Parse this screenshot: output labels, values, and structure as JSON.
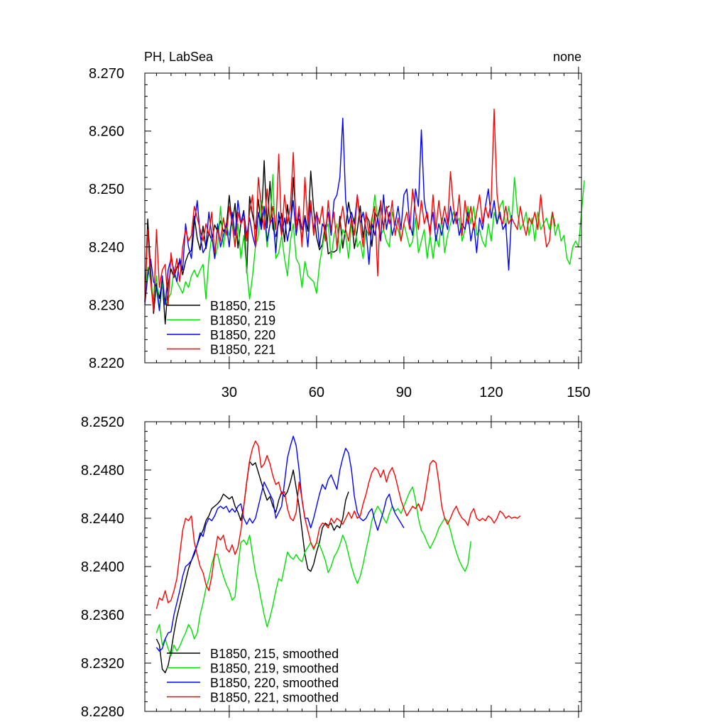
{
  "chart_data": [
    {
      "type": "line",
      "title": "PH, LabSea",
      "subtitle": "none",
      "xlabel": "",
      "ylabel": "",
      "xlim": [
        1,
        151
      ],
      "ylim": [
        8.22,
        8.27
      ],
      "x_ticks": [
        30,
        60,
        90,
        120,
        150
      ],
      "y_ticks": [
        8.22,
        8.23,
        8.24,
        8.25,
        8.26,
        8.27
      ],
      "y_tick_labels": [
        "8.220",
        "8.230",
        "8.240",
        "8.250",
        "8.260",
        "8.270"
      ],
      "grid": false,
      "legend": "bottom-left",
      "series": [
        {
          "name": "B1850, 215",
          "color": "#000000",
          "x_start": 1,
          "values": [
            8.2305,
            8.2448,
            8.2359,
            8.2285,
            8.2337,
            8.2311,
            8.2342,
            8.2267,
            8.2336,
            8.2362,
            8.2347,
            8.2365,
            8.2376,
            8.2352,
            8.2375,
            8.2389,
            8.2394,
            8.2453,
            8.2415,
            8.2395,
            8.2436,
            8.2397,
            8.2425,
            8.2411,
            8.2438,
            8.2427,
            8.2445,
            8.2427,
            8.2434,
            8.2489,
            8.2437,
            8.2475,
            8.2398,
            8.2441,
            8.2463,
            8.2355,
            8.2487,
            8.2454,
            8.2431,
            8.2482,
            8.2436,
            8.2549,
            8.2433,
            8.2513,
            8.2432,
            8.2418,
            8.2442,
            8.2458,
            8.2409,
            8.2473,
            8.2428,
            8.252,
            8.2445,
            8.2448,
            8.2412,
            8.2454,
            8.2427,
            8.2531,
            8.2466,
            8.2417,
            8.2395,
            8.2404,
            8.2438,
            8.2388,
            8.2392,
            8.2391,
            8.2395,
            8.2453,
            8.2398,
            8.2433,
            8.2477,
            8.2448,
            8.2397,
            8.2429,
            8.2471,
            8.2416,
            8.2455,
            8.2445,
            8.2401,
            8.246,
            8.245,
            8.2475,
            8.2433,
            8.2466,
            8.2471
          ]
        },
        {
          "name": "B1850, 219",
          "color": "#00e000",
          "x_start": 1,
          "values": [
            8.2305,
            8.2365,
            8.2342,
            8.231,
            8.235,
            8.229,
            8.234,
            8.23,
            8.231,
            8.232,
            8.236,
            8.234,
            8.233,
            8.232,
            8.234,
            8.233,
            8.235,
            8.236,
            8.2348,
            8.236,
            8.237,
            8.231,
            8.238,
            8.242,
            8.238,
            8.24,
            8.247,
            8.24,
            8.244,
            8.242,
            8.245,
            8.24,
            8.244,
            8.238,
            8.242,
            8.236,
            8.231,
            8.235,
            8.24,
            8.242,
            8.248,
            8.246,
            8.24,
            8.244,
            8.2525,
            8.238,
            8.239,
            8.242,
            8.238,
            8.235,
            8.241,
            8.244,
            8.238,
            8.237,
            8.233,
            8.2375,
            8.235,
            8.2345,
            8.234,
            8.232,
            8.237,
            8.24,
            8.243,
            8.244,
            8.238,
            8.242,
            8.244,
            8.239,
            8.243,
            8.242,
            8.238,
            8.244,
            8.245,
            8.24,
            8.241,
            8.238,
            8.243,
            8.242,
            8.244,
            8.249,
            8.245,
            8.242,
            8.243,
            8.241,
            8.24,
            8.246,
            8.244,
            8.243,
            8.241,
            8.244,
            8.242,
            8.24,
            8.241,
            8.245,
            8.239,
            8.241,
            8.243,
            8.238,
            8.242,
            8.238,
            8.242,
            8.24,
            8.245,
            8.239,
            8.242,
            8.244,
            8.246,
            8.244,
            8.245,
            8.241,
            8.243,
            8.247,
            8.244,
            8.247,
            8.242,
            8.243,
            8.241,
            8.24,
            8.244,
            8.241,
            8.246,
            8.244,
            8.247,
            8.248,
            8.243,
            8.247,
            8.244,
            8.252,
            8.246,
            8.243,
            8.244,
            8.246,
            8.242,
            8.245,
            8.241,
            8.246,
            8.243,
            8.244,
            8.245,
            8.243,
            8.246,
            8.242,
            8.244,
            8.241,
            8.242,
            8.238,
            8.237,
            8.24,
            8.241,
            8.24,
            8.246,
            8.2515
          ]
        },
        {
          "name": "B1850, 220",
          "color": "#0000ff",
          "x_start": 1,
          "values": [
            8.2301,
            8.235,
            8.2379,
            8.234,
            8.233,
            8.229,
            8.235,
            8.23,
            8.236,
            8.238,
            8.236,
            8.234,
            8.238,
            8.236,
            8.244,
            8.24,
            8.238,
            8.244,
            8.248,
            8.242,
            8.239,
            8.24,
            8.246,
            8.242,
            8.238,
            8.244,
            8.24,
            8.242,
            8.244,
            8.24,
            8.246,
            8.242,
            8.248,
            8.244,
            8.246,
            8.242,
            8.245,
            8.242,
            8.24,
            8.246,
            8.243,
            8.247,
            8.241,
            8.244,
            8.245,
            8.239,
            8.246,
            8.242,
            8.245,
            8.241,
            8.244,
            8.248,
            8.242,
            8.246,
            8.243,
            8.245,
            8.24,
            8.247,
            8.243,
            8.246,
            8.24,
            8.244,
            8.243,
            8.246,
            8.242,
            8.248,
            8.249,
            8.252,
            8.2622,
            8.248,
            8.244,
            8.246,
            8.244,
            8.249,
            8.244,
            8.246,
            8.243,
            8.237,
            8.244,
            8.242,
            8.245,
            8.241,
            8.249,
            8.243,
            8.246,
            8.242,
            8.244,
            8.247,
            8.243,
            8.249,
            8.25,
            8.244,
            8.242,
            8.25,
            8.247,
            8.2602,
            8.248,
            8.245,
            8.243,
            8.246,
            8.241,
            8.244,
            8.242,
            8.245,
            8.243,
            8.247,
            8.244,
            8.246,
            8.242,
            8.244,
            8.243,
            8.246,
            8.241,
            8.244,
            8.239,
            8.245,
            8.243,
            8.247,
            8.25,
            8.245,
            8.248,
            8.244,
            8.246,
            8.243,
            8.244,
            8.236,
            8.2455
          ]
        },
        {
          "name": "B1850, 221",
          "color": "#ff0000",
          "x_start": 1,
          "values": [
            8.2305,
            8.243,
            8.234,
            8.229,
            8.243,
            8.233,
            8.236,
            8.237,
            8.23,
            8.239,
            8.235,
            8.238,
            8.234,
            8.24,
            8.243,
            8.241,
            8.242,
            8.247,
            8.245,
            8.243,
            8.241,
            8.244,
            8.242,
            8.246,
            8.239,
            8.243,
            8.241,
            8.245,
            8.242,
            8.247,
            8.244,
            8.24,
            8.246,
            8.244,
            8.245,
            8.241,
            8.246,
            8.249,
            8.24,
            8.252,
            8.247,
            8.243,
            8.25,
            8.244,
            8.247,
            8.243,
            8.256,
            8.242,
            8.249,
            8.244,
            8.247,
            8.2563,
            8.243,
            8.247,
            8.24,
            8.252,
            8.244,
            8.248,
            8.242,
            8.246,
            8.244,
            8.247,
            8.241,
            8.248,
            8.243,
            8.246,
            8.24,
            8.244,
            8.247,
            8.243,
            8.241,
            8.245,
            8.242,
            8.249,
            8.244,
            8.24,
            8.246,
            8.242,
            8.245,
            8.247,
            8.235,
            8.248,
            8.243,
            8.247,
            8.244,
            8.248,
            8.242,
            8.245,
            8.241,
            8.244,
            8.246,
            8.243,
            8.25,
            8.246,
            8.243,
            8.248,
            8.244,
            8.246,
            8.242,
            8.249,
            8.243,
            8.248,
            8.244,
            8.247,
            8.244,
            8.253,
            8.247,
            8.244,
            8.249,
            8.242,
            8.248,
            8.244,
            8.247,
            8.243,
            8.246,
            8.249,
            8.244,
            8.247,
            8.245,
            8.248,
            8.2638,
            8.249,
            8.245,
            8.244,
            8.247,
            8.244,
            8.245,
            8.244,
            8.243,
            8.247,
            8.244,
            8.242,
            8.245,
            8.244,
            8.246,
            8.243,
            8.249,
            8.244,
            8.24,
            8.241,
            8.246,
            8.2435
          ]
        }
      ]
    },
    {
      "type": "line",
      "title": "",
      "xlabel": "",
      "ylabel": "",
      "xlim": [
        1,
        151
      ],
      "ylim": [
        8.228,
        8.252
      ],
      "y_ticks": [
        8.228,
        8.232,
        8.236,
        8.24,
        8.244,
        8.248,
        8.252
      ],
      "y_tick_labels": [
        "8.2280",
        "8.2320",
        "8.2360",
        "8.2400",
        "8.2440",
        "8.2480",
        "8.2520"
      ],
      "grid": false,
      "legend": "bottom-left",
      "series": [
        {
          "name": "B1850, 215, smoothed",
          "color": "#000000",
          "x_start": 5,
          "values": [
            8.234,
            8.2335,
            8.2315,
            8.2312,
            8.2318,
            8.233,
            8.2345,
            8.2358,
            8.2368,
            8.2378,
            8.2388,
            8.2398,
            8.2405,
            8.241,
            8.2418,
            8.2425,
            8.243,
            8.2438,
            8.2442,
            8.2448,
            8.245,
            8.2452,
            8.2455,
            8.246,
            8.2458,
            8.2456,
            8.2458,
            8.245,
            8.2445,
            8.2438,
            8.245,
            8.247,
            8.2487,
            8.2484,
            8.2486,
            8.2478,
            8.247,
            8.2462,
            8.2455,
            8.2458,
            8.245,
            8.2445,
            8.2455,
            8.2462,
            8.2458,
            8.2462,
            8.247,
            8.248,
            8.2465,
            8.245,
            8.243,
            8.241,
            8.2398,
            8.2396,
            8.2402,
            8.2412,
            8.242,
            8.2432,
            8.2436,
            8.2434,
            8.2436,
            8.243,
            8.2434,
            8.2432,
            8.244,
            8.2455,
            8.2462
          ]
        },
        {
          "name": "B1850, 219, smoothed",
          "color": "#00e000",
          "x_start": 5,
          "values": [
            8.2345,
            8.2352,
            8.2335,
            8.234,
            8.2332,
            8.2326,
            8.2335,
            8.233,
            8.2334,
            8.234,
            8.2345,
            8.2352,
            8.2348,
            8.234,
            8.2345,
            8.236,
            8.237,
            8.2382,
            8.239,
            8.2402,
            8.241,
            8.241,
            8.24,
            8.2392,
            8.2385,
            8.238,
            8.2372,
            8.2375,
            8.24,
            8.242,
            8.2422,
            8.2418,
            8.2426,
            8.241,
            8.2395,
            8.2385,
            8.2372,
            8.236,
            8.235,
            8.2358,
            8.2368,
            8.238,
            8.239,
            8.2388,
            8.24,
            8.2412,
            8.2408,
            8.2406,
            8.241,
            8.2406,
            8.2404,
            8.2412,
            8.2416,
            8.242,
            8.2414,
            8.242,
            8.2418,
            8.2412,
            8.2405,
            8.2395,
            8.24,
            8.2408,
            8.2412,
            8.2418,
            8.2426,
            8.242,
            8.241,
            8.24,
            8.2392,
            8.2386,
            8.2392,
            8.2402,
            8.2414,
            8.2425,
            8.2438,
            8.2445,
            8.245,
            8.2446,
            8.244,
            8.2436,
            8.2444,
            8.245,
            8.2446,
            8.2448,
            8.2444,
            8.245,
            8.2456,
            8.2462,
            8.2466,
            8.2455,
            8.244,
            8.243,
            8.2426,
            8.242,
            8.2415,
            8.242,
            8.2425,
            8.2432,
            8.2436,
            8.244,
            8.2438,
            8.243,
            8.242,
            8.2412,
            8.2405,
            8.24,
            8.2396,
            8.2402,
            8.2421
          ]
        },
        {
          "name": "B1850, 220, smoothed",
          "color": "#0000ff",
          "x_start": 5,
          "values": [
            8.2333,
            8.233,
            8.2332,
            8.234,
            8.2345,
            8.2346,
            8.236,
            8.237,
            8.238,
            8.2392,
            8.24,
            8.2402,
            8.2405,
            8.2412,
            8.2418,
            8.2428,
            8.2425,
            8.2435,
            8.244,
            8.2438,
            8.2442,
            8.2448,
            8.245,
            8.2448,
            8.245,
            8.2445,
            8.2448,
            8.2445,
            8.245,
            8.2452,
            8.244,
            8.2435,
            8.244,
            8.2436,
            8.244,
            8.245,
            8.246,
            8.247,
            8.2465,
            8.246,
            8.2455,
            8.244,
            8.2445,
            8.245,
            8.247,
            8.249,
            8.25,
            8.2508,
            8.25,
            8.248,
            8.2455,
            8.244,
            8.244,
            8.2432,
            8.244,
            8.245,
            8.246,
            8.2468,
            8.2464,
            8.2472,
            8.2476,
            8.247,
            8.2464,
            8.248,
            8.249,
            8.2498,
            8.2494,
            8.248,
            8.2458,
            8.2445,
            8.244,
            8.2438,
            8.244,
            8.2445,
            8.2448,
            8.2438,
            8.243,
            8.2438,
            8.2446,
            8.2456,
            8.246,
            8.245,
            8.2444,
            8.244,
            8.2436,
            8.2432
          ]
        },
        {
          "name": "B1850, 221, smoothed",
          "color": "#ff0000",
          "x_start": 5,
          "values": [
            8.2365,
            8.2374,
            8.2372,
            8.238,
            8.237,
            8.2372,
            8.238,
            8.239,
            8.241,
            8.243,
            8.244,
            8.2438,
            8.2442,
            8.242,
            8.241,
            8.24,
            8.2395,
            8.2385,
            8.238,
            8.2392,
            8.241,
            8.2425,
            8.2422,
            8.2426,
            8.2415,
            8.2412,
            8.2418,
            8.241,
            8.2416,
            8.243,
            8.245,
            8.247,
            8.2488,
            8.2498,
            8.2504,
            8.25,
            8.2482,
            8.2485,
            8.2492,
            8.2485,
            8.2475,
            8.2468,
            8.247,
            8.246,
            8.2462,
            8.2448,
            8.244,
            8.2438,
            8.2445,
            8.247,
            8.2456,
            8.244,
            8.243,
            8.242,
            8.2415,
            8.242,
            8.2432,
            8.2436,
            8.2435,
            8.2432,
            8.244,
            8.2436,
            8.244,
            8.2438,
            8.2435,
            8.244,
            8.2445,
            8.244,
            8.2446,
            8.244,
            8.2442,
            8.2452,
            8.246,
            8.247,
            8.2478,
            8.2482,
            8.248,
            8.2474,
            8.248,
            8.247,
            8.2478,
            8.2482,
            8.2475,
            8.2465,
            8.2455,
            8.2448,
            8.2442,
            8.2446,
            8.245,
            8.2448,
            8.2452,
            8.2446,
            8.2455,
            8.247,
            8.2485,
            8.2488,
            8.2486,
            8.247,
            8.245,
            8.244,
            8.2435,
            8.244,
            8.2446,
            8.245,
            8.2444,
            8.244,
            8.2438,
            8.2434,
            8.2444,
            8.2448,
            8.244,
            8.2438,
            8.244,
            8.2438,
            8.2442,
            8.244,
            8.2436,
            8.244,
            8.2446,
            8.2444,
            8.244,
            8.2442,
            8.244,
            8.2441,
            8.244,
            8.2442
          ]
        }
      ]
    }
  ]
}
